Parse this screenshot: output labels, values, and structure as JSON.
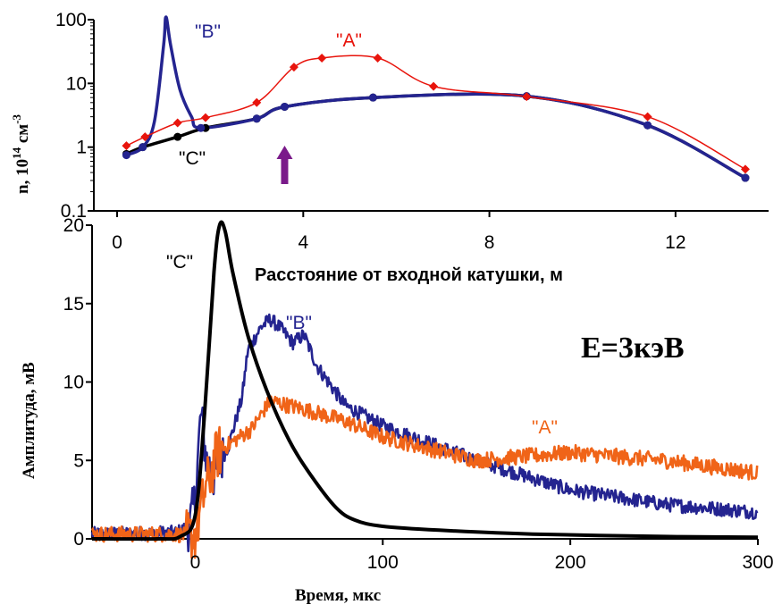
{
  "chart_data": [
    {
      "type": "line",
      "yscale": "log",
      "xlabel": "Расстояние от входной катушки, м",
      "ylabel_base": "n, 10",
      "ylabel_exp1": "14",
      "ylabel_unit": " см",
      "ylabel_exp2": "-3",
      "xlim": [
        -0.5,
        14
      ],
      "ylim": [
        0.1,
        100
      ],
      "xticks": [
        0,
        4,
        8,
        12
      ],
      "yticks": [
        0.1,
        1,
        10,
        100
      ],
      "ytick_labels": [
        "0.1",
        "1",
        "10",
        "100"
      ],
      "arrow_x": 3.6,
      "series": [
        {
          "name": "\"A\"",
          "color": "#e8140c",
          "marker": "diamond",
          "x": [
            0.2,
            0.6,
            1.3,
            1.9,
            3.0,
            3.8,
            4.4,
            5.6,
            6.8,
            8.8,
            11.4,
            13.5
          ],
          "y": [
            1.05,
            1.45,
            2.4,
            2.9,
            5.0,
            18,
            25,
            25,
            9,
            6.2,
            3.0,
            0.45
          ]
        },
        {
          "name": "\"B\"",
          "color": "#242490",
          "marker": "circle",
          "x": [
            0.2,
            0.55,
            0.8,
            1.0,
            1.05,
            1.15,
            1.35,
            1.6,
            1.8,
            3.0,
            3.6,
            5.5,
            8.8,
            11.4,
            13.5
          ],
          "y": [
            0.75,
            1.0,
            2.5,
            40,
            110,
            40,
            8,
            3.0,
            2.0,
            2.8,
            4.3,
            6.0,
            6.3,
            2.2,
            0.33
          ]
        },
        {
          "name": "\"C\"",
          "color": "#000000",
          "marker": "circle",
          "x": [
            0.2,
            0.55,
            1.3,
            1.9,
            3.0,
            3.6,
            5.5,
            8.8,
            11.4,
            13.5
          ],
          "y": [
            0.78,
            1.0,
            1.45,
            2.0,
            2.8,
            4.3,
            6.0,
            6.3,
            2.2,
            0.33
          ]
        }
      ]
    },
    {
      "type": "line",
      "xlabel": "Время, мкс",
      "ylabel": "Амплитуда, мВ",
      "xlim": [
        -55,
        300
      ],
      "ylim": [
        0,
        20
      ],
      "xticks": [
        0,
        100,
        200,
        300
      ],
      "yticks": [
        0,
        5,
        10,
        15,
        20
      ],
      "annotation": "E=3кэВ",
      "series": [
        {
          "name": "\"C\"",
          "color": "#000000",
          "noise": 0,
          "x": [
            -55,
            -20,
            -8,
            0,
            5,
            10,
            13,
            16,
            20,
            28,
            38,
            50,
            62,
            75,
            85,
            100,
            130,
            180,
            250,
            300
          ],
          "y": [
            0,
            0,
            0.15,
            1.5,
            8,
            17,
            20,
            19.6,
            17,
            13,
            9.5,
            6.3,
            4,
            2,
            1.2,
            0.8,
            0.55,
            0.3,
            0.15,
            0.1
          ]
        },
        {
          "name": "\"B\"",
          "color": "#242490",
          "noise": 0.45,
          "x": [
            -55,
            -10,
            -3,
            0,
            3,
            6,
            10,
            18,
            25,
            28,
            35,
            40,
            45,
            52,
            58,
            65,
            80,
            100,
            150,
            200,
            250,
            300
          ],
          "y": [
            0.3,
            0.4,
            0.8,
            2.5,
            8,
            5,
            4,
            6,
            9,
            12,
            13.5,
            14,
            13.5,
            12.5,
            13,
            11,
            8.5,
            7.2,
            5.0,
            3.1,
            2.2,
            1.7
          ]
        },
        {
          "name": "\"A\"",
          "color": "#f06418",
          "noise": 0.5,
          "x": [
            -55,
            -10,
            -5,
            0,
            5,
            12,
            20,
            30,
            40,
            50,
            60,
            80,
            100,
            150,
            200,
            250,
            300
          ],
          "y": [
            0.3,
            0.3,
            0.2,
            0.2,
            3,
            5.5,
            6.2,
            7,
            8.8,
            8.5,
            8.2,
            7.5,
            6.5,
            5.0,
            5.5,
            5.0,
            4.2
          ]
        }
      ]
    }
  ],
  "labels": {
    "top_A": "\"A\"",
    "top_B": "\"B\"",
    "top_C": "\"C\"",
    "bot_A": "\"A\"",
    "bot_B": "\"B\"",
    "bot_C": "\"C\""
  }
}
